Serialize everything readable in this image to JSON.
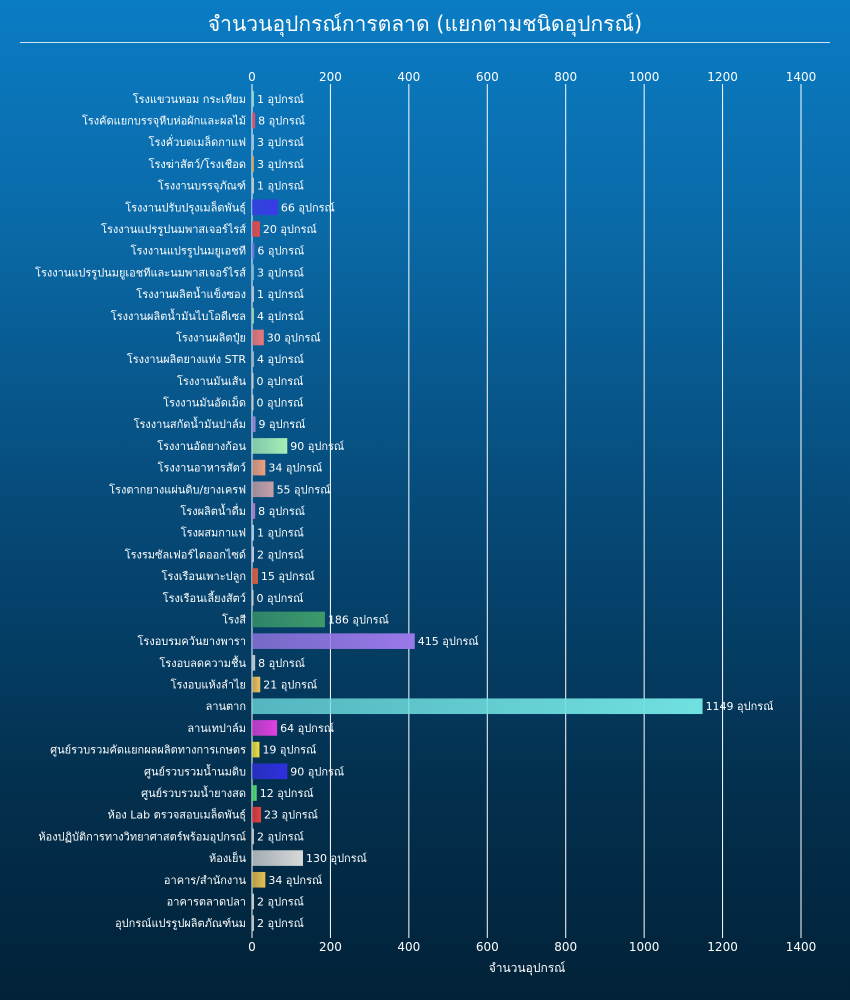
{
  "chart_data": {
    "type": "bar",
    "orientation": "horizontal",
    "title": "จำนวนอุปกรณ์การตลาด (แยกตามชนิดอุปกรณ์)",
    "xlabel": "จำนวนอุปกรณ์",
    "ylabel": "",
    "xlim": [
      0,
      1400
    ],
    "x_ticks": [
      0,
      200,
      400,
      600,
      800,
      1000,
      1200,
      1400
    ],
    "grid": true,
    "value_suffix": " อุปกรณ์",
    "categories": [
      "โรงแขวนหอม กระเทียม",
      "โรงคัดแยกบรรจุหีบห่อผักและผลไม้",
      "โรงคั่วบดเมล็ดกาแฟ",
      "โรงฆ่าสัตว์/โรงเชือด",
      "โรงงานบรรจุภัณฑ์",
      "โรงงานปรับปรุงเมล็ดพันธุ์",
      "โรงงานแปรรูปนมพาสเจอร์ไรส์",
      "โรงงานแปรรูปนมยูเอชที",
      "โรงงานแปรรูปนมยูเอชทีและนมพาสเจอร์ไรส์",
      "โรงงานผลิตน้ำแข็งซอง",
      "โรงงานผลิตน้ำมันไบโอดีเซล",
      "โรงงานผลิตปุ๋ย",
      "โรงงานผลิตยางแท่ง STR",
      "โรงงานมันเส้น",
      "โรงงานมันอัดเม็ด",
      "โรงงานสกัดน้ำมันปาล์ม",
      "โรงงานอัดยางก้อน",
      "โรงงานอาหารสัตว์",
      "โรงตากยางแผ่นดิบ/ยางเครฟ",
      "โรงผลิตน้ำดื่ม",
      "โรงผสมกาแฟ",
      "โรงรมซัลเฟอร์ไดออกไซด์",
      "โรงเรือนเพาะปลูก",
      "โรงเรือนเลี้ยงสัตว์",
      "โรงสี",
      "โรงอบรมควันยางพารา",
      "โรงอบลดความชื้น",
      "โรงอบแห้งลำไย",
      "ลานตาก",
      "ลานเทปาล์ม",
      "ศูนย์รวบรวมคัดแยกผลผลิตทางการเกษตร",
      "ศูนย์รวบรวมน้ำนมดิบ",
      "ศูนย์รวบรวมน้ำยางสด",
      "ห้อง Lab ตรวจสอบเมล็ดพันธุ์",
      "ห้องปฏิบัติการทางวิทยาศาสตร์พร้อมอุปกรณ์",
      "ห้องเย็น",
      "อาคาร/สำนักงาน",
      "อาคารตลาดปลา",
      "อุปกรณ์แปรรูปผลิตภัณฑ์นม"
    ],
    "values": [
      1,
      8,
      3,
      3,
      1,
      66,
      20,
      6,
      3,
      1,
      4,
      30,
      4,
      0,
      0,
      9,
      90,
      34,
      55,
      8,
      1,
      2,
      15,
      0,
      186,
      415,
      8,
      21,
      1149,
      64,
      19,
      90,
      12,
      23,
      2,
      130,
      34,
      2,
      2
    ],
    "colors": [
      "#8fd6c8",
      "#e8506a",
      "#9cc1e0",
      "#d9a050",
      "#c9c9c9",
      "#3a3ae8",
      "#e84a4a",
      "#6a78d8",
      "#7ab0d0",
      "#b8c4d8",
      "#9ad0b0",
      "#f07878",
      "#9ab0c8",
      "#cccccc",
      "#cccccc",
      "#9a8ad8",
      "#a8eeb8",
      "#f0a080",
      "#c8a0a8",
      "#b080d0",
      "#a8d0e8",
      "#c8c8e0",
      "#e06040",
      "#cccccc",
      "#3c9a6a",
      "#9a78e8",
      "#c8d0d8",
      "#f0c060",
      "#70e0e0",
      "#e040e0",
      "#f0e040",
      "#3030e0",
      "#50e070",
      "#e84040",
      "#c8c8c8",
      "#d8d8d8",
      "#e8c050",
      "#d0d0d0",
      "#c8c8c8"
    ]
  }
}
